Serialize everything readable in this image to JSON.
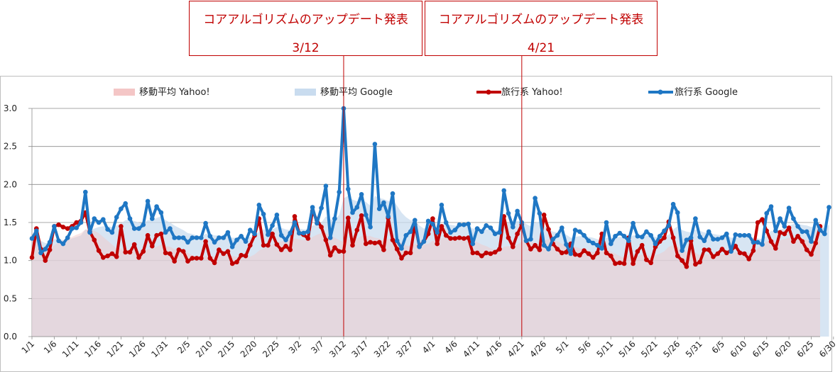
{
  "callouts": [
    {
      "title": "コアアルゴリズムのアップデート発表",
      "date": "3/12"
    },
    {
      "title": "コアアルゴリズムのアップデート発表",
      "date": "4/21"
    }
  ],
  "colors": {
    "yahoo": "#c00000",
    "google": "#1f77c4",
    "ma_yahoo": "#f4c6c6",
    "ma_google": "#c9dcef",
    "grid": "#8c8c8c",
    "callout": "#c00000"
  },
  "chart_data": {
    "type": "line",
    "title": "",
    "xlabel": "",
    "ylabel": "",
    "ylim": [
      0,
      3.0
    ],
    "yticks": [
      "0.0",
      "0.5",
      "1.0",
      "1.5",
      "2.0",
      "2.5",
      "3.0"
    ],
    "x_tick_labels": [
      "1/1",
      "1/6",
      "1/11",
      "1/16",
      "1/21",
      "1/26",
      "1/31",
      "2/5",
      "2/10",
      "2/15",
      "2/20",
      "2/25",
      "3/2",
      "3/7",
      "3/12",
      "3/17",
      "3/22",
      "3/27",
      "4/1",
      "4/6",
      "4/11",
      "4/16",
      "4/21",
      "4/26",
      "5/1",
      "5/6",
      "5/11",
      "5/16",
      "5/21",
      "5/26",
      "5/31",
      "6/5",
      "6/10",
      "6/15",
      "6/20",
      "6/25",
      "6/30"
    ],
    "legend": [
      "移動平均 Yahoo!",
      "移動平均 Google",
      "旅行系 Yahoo!",
      "旅行系 Google"
    ],
    "legend_position": "top",
    "event_markers": [
      {
        "label": "3/12",
        "index": 70
      },
      {
        "label": "4/21",
        "index": 110
      }
    ],
    "series": [
      {
        "name": "旅行系 Yahoo!",
        "values": [
          1.04,
          1.42,
          1.15,
          1.0,
          1.14,
          1.45,
          1.47,
          1.44,
          1.42,
          1.45,
          1.5,
          1.52,
          1.63,
          1.38,
          1.27,
          1.13,
          1.04,
          1.06,
          1.09,
          1.05,
          1.45,
          1.11,
          1.11,
          1.21,
          1.04,
          1.12,
          1.33,
          1.19,
          1.33,
          1.35,
          1.1,
          1.09,
          0.99,
          1.14,
          1.12,
          0.99,
          1.03,
          1.03,
          1.03,
          1.25,
          1.03,
          0.97,
          1.14,
          1.09,
          1.12,
          0.96,
          0.98,
          1.07,
          1.06,
          1.2,
          1.33,
          1.55,
          1.2,
          1.2,
          1.35,
          1.21,
          1.14,
          1.19,
          1.14,
          1.58,
          1.36,
          1.34,
          1.29,
          1.65,
          1.53,
          1.44,
          1.27,
          1.07,
          1.17,
          1.12,
          1.12,
          1.56,
          1.2,
          1.4,
          1.59,
          1.22,
          1.24,
          1.23,
          1.24,
          1.14,
          1.56,
          1.27,
          1.15,
          1.03,
          1.1,
          1.1,
          1.47,
          1.19,
          1.25,
          1.35,
          1.55,
          1.22,
          1.45,
          1.33,
          1.29,
          1.29,
          1.3,
          1.29,
          1.3,
          1.1,
          1.1,
          1.06,
          1.1,
          1.09,
          1.11,
          1.15,
          1.58,
          1.3,
          1.18,
          1.35,
          1.47,
          1.26,
          1.15,
          1.2,
          1.14,
          1.6,
          1.41,
          1.22,
          1.15,
          1.1,
          1.11,
          1.22,
          1.08,
          1.07,
          1.13,
          1.09,
          1.04,
          1.1,
          1.35,
          1.1,
          1.06,
          0.96,
          0.97,
          0.96,
          1.3,
          0.96,
          1.12,
          1.2,
          1.01,
          0.97,
          1.18,
          1.25,
          1.3,
          1.51,
          1.3,
          1.06,
          1.0,
          0.92,
          1.26,
          0.95,
          0.98,
          1.14,
          1.14,
          1.05,
          1.09,
          1.15,
          1.1,
          1.13,
          1.19,
          1.1,
          1.09,
          1.02,
          1.13,
          1.5,
          1.54,
          1.39,
          1.25,
          1.16,
          1.37,
          1.35,
          1.43,
          1.25,
          1.32,
          1.25,
          1.14,
          1.08,
          1.23,
          1.45
        ]
      },
      {
        "name": "旅行系 Google",
        "values": [
          1.29,
          1.39,
          1.1,
          1.15,
          1.24,
          1.45,
          1.26,
          1.22,
          1.3,
          1.42,
          1.43,
          1.5,
          1.9,
          1.37,
          1.55,
          1.5,
          1.54,
          1.41,
          1.37,
          1.57,
          1.68,
          1.75,
          1.55,
          1.42,
          1.42,
          1.47,
          1.78,
          1.55,
          1.71,
          1.63,
          1.37,
          1.42,
          1.3,
          1.3,
          1.3,
          1.24,
          1.3,
          1.3,
          1.3,
          1.49,
          1.32,
          1.24,
          1.3,
          1.3,
          1.37,
          1.18,
          1.27,
          1.32,
          1.25,
          1.4,
          1.35,
          1.73,
          1.61,
          1.34,
          1.46,
          1.6,
          1.33,
          1.27,
          1.36,
          1.5,
          1.36,
          1.36,
          1.38,
          1.7,
          1.49,
          1.69,
          1.98,
          1.3,
          1.55,
          1.9,
          3.0,
          1.94,
          1.63,
          1.7,
          1.87,
          1.6,
          1.44,
          2.53,
          1.68,
          1.76,
          1.58,
          1.88,
          1.26,
          1.16,
          1.33,
          1.38,
          1.53,
          1.18,
          1.25,
          1.52,
          1.48,
          1.37,
          1.73,
          1.5,
          1.37,
          1.4,
          1.47,
          1.47,
          1.48,
          1.22,
          1.42,
          1.38,
          1.46,
          1.43,
          1.35,
          1.37,
          1.92,
          1.62,
          1.44,
          1.65,
          1.5,
          1.26,
          1.28,
          1.82,
          1.62,
          1.2,
          1.15,
          1.28,
          1.33,
          1.43,
          1.21,
          1.09,
          1.4,
          1.38,
          1.33,
          1.26,
          1.23,
          1.2,
          1.16,
          1.5,
          1.22,
          1.32,
          1.36,
          1.32,
          1.26,
          1.49,
          1.32,
          1.31,
          1.38,
          1.33,
          1.22,
          1.32,
          1.39,
          1.46,
          1.74,
          1.63,
          1.13,
          1.27,
          1.3,
          1.55,
          1.31,
          1.26,
          1.38,
          1.28,
          1.28,
          1.3,
          1.35,
          1.12,
          1.34,
          1.33,
          1.33,
          1.33,
          1.24,
          1.24,
          1.21,
          1.62,
          1.71,
          1.39,
          1.55,
          1.45,
          1.69,
          1.55,
          1.45,
          1.38,
          1.38,
          1.25,
          1.53,
          1.4,
          1.35,
          1.7
        ]
      },
      {
        "name": "移動平均 Yahoo!",
        "values": [
          1.04,
          1.23,
          1.2,
          1.15,
          1.15,
          1.2,
          1.24,
          1.27,
          1.29,
          1.31,
          1.34,
          1.36,
          1.41,
          1.4,
          1.39,
          1.36,
          1.31,
          1.26,
          1.21,
          1.16,
          1.16,
          1.14,
          1.14,
          1.15,
          1.12,
          1.13,
          1.15,
          1.16,
          1.18,
          1.21,
          1.19,
          1.18,
          1.15,
          1.15,
          1.13,
          1.1,
          1.07,
          1.05,
          1.04,
          1.06,
          1.06,
          1.05,
          1.06,
          1.07,
          1.08,
          1.06,
          1.05,
          1.04,
          1.03,
          1.05,
          1.08,
          1.13,
          1.16,
          1.18,
          1.21,
          1.24,
          1.25,
          1.26,
          1.26,
          1.29,
          1.28,
          1.27,
          1.27,
          1.31,
          1.34,
          1.36,
          1.36,
          1.33,
          1.3,
          1.27,
          1.24,
          1.28,
          1.27,
          1.29,
          1.32,
          1.32,
          1.32,
          1.3,
          1.29,
          1.25,
          1.28,
          1.3,
          1.27,
          1.23,
          1.2,
          1.18,
          1.22,
          1.21,
          1.21,
          1.22,
          1.26,
          1.25,
          1.29,
          1.31,
          1.31,
          1.32,
          1.32,
          1.31,
          1.3,
          1.27,
          1.24,
          1.21,
          1.19,
          1.16,
          1.14,
          1.13,
          1.18,
          1.19,
          1.19,
          1.21,
          1.25,
          1.25,
          1.24,
          1.23,
          1.21,
          1.26,
          1.28,
          1.27,
          1.25,
          1.22,
          1.2,
          1.2,
          1.18,
          1.16,
          1.15,
          1.13,
          1.11,
          1.1,
          1.13,
          1.13,
          1.12,
          1.09,
          1.06,
          1.03,
          1.07,
          1.05,
          1.06,
          1.08,
          1.07,
          1.05,
          1.07,
          1.09,
          1.12,
          1.18,
          1.2,
          1.18,
          1.15,
          1.11,
          1.13,
          1.1,
          1.07,
          1.08,
          1.08,
          1.07,
          1.07,
          1.08,
          1.08,
          1.09,
          1.11,
          1.11,
          1.11,
          1.1,
          1.1,
          1.16,
          1.22,
          1.25,
          1.26,
          1.24,
          1.27,
          1.28,
          1.3,
          1.3,
          1.3,
          1.29,
          1.27,
          1.25,
          1.24,
          1.27
        ]
      },
      {
        "name": "移動平均 Google",
        "values": [
          1.29,
          1.34,
          1.26,
          1.23,
          1.23,
          1.28,
          1.28,
          1.27,
          1.27,
          1.29,
          1.31,
          1.33,
          1.41,
          1.4,
          1.42,
          1.44,
          1.45,
          1.45,
          1.44,
          1.46,
          1.49,
          1.53,
          1.54,
          1.52,
          1.5,
          1.49,
          1.53,
          1.53,
          1.56,
          1.58,
          1.53,
          1.5,
          1.46,
          1.43,
          1.4,
          1.36,
          1.35,
          1.33,
          1.32,
          1.35,
          1.35,
          1.33,
          1.33,
          1.32,
          1.33,
          1.3,
          1.3,
          1.3,
          1.29,
          1.31,
          1.32,
          1.38,
          1.41,
          1.4,
          1.41,
          1.44,
          1.43,
          1.41,
          1.4,
          1.42,
          1.42,
          1.41,
          1.41,
          1.46,
          1.47,
          1.5,
          1.58,
          1.54,
          1.54,
          1.6,
          1.82,
          1.85,
          1.8,
          1.78,
          1.8,
          1.77,
          1.72,
          1.85,
          1.82,
          1.81,
          1.78,
          1.8,
          1.72,
          1.63,
          1.57,
          1.53,
          1.53,
          1.46,
          1.42,
          1.44,
          1.44,
          1.43,
          1.48,
          1.48,
          1.47,
          1.46,
          1.46,
          1.46,
          1.46,
          1.42,
          1.42,
          1.41,
          1.41,
          1.41,
          1.4,
          1.39,
          1.47,
          1.5,
          1.5,
          1.52,
          1.52,
          1.48,
          1.45,
          1.5,
          1.51,
          1.46,
          1.41,
          1.38,
          1.37,
          1.37,
          1.34,
          1.3,
          1.31,
          1.32,
          1.32,
          1.31,
          1.3,
          1.28,
          1.26,
          1.3,
          1.29,
          1.3,
          1.31,
          1.31,
          1.3,
          1.33,
          1.33,
          1.32,
          1.33,
          1.33,
          1.31,
          1.31,
          1.32,
          1.34,
          1.41,
          1.45,
          1.4,
          1.38,
          1.37,
          1.41,
          1.39,
          1.37,
          1.37,
          1.35,
          1.34,
          1.33,
          1.33,
          1.3,
          1.3,
          1.31,
          1.31,
          1.31,
          1.3,
          1.29,
          1.28,
          1.33,
          1.39,
          1.39,
          1.41,
          1.42,
          1.46,
          1.48,
          1.48,
          1.47,
          1.46,
          1.44,
          1.45,
          1.44,
          1.43,
          1.47
        ]
      }
    ]
  }
}
